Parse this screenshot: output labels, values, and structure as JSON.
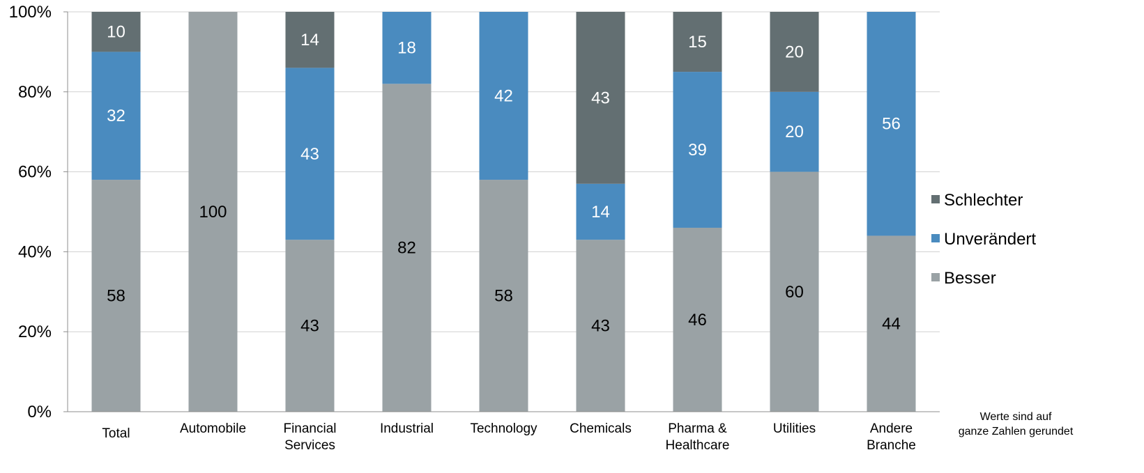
{
  "chart_data": {
    "type": "bar",
    "stacked": true,
    "percent_scale": true,
    "categories": [
      [
        "Total"
      ],
      [
        "Automobile"
      ],
      [
        "Financial",
        "Services"
      ],
      [
        "Industrial"
      ],
      [
        "Technology"
      ],
      [
        "Chemicals"
      ],
      [
        "Pharma &",
        "Healthcare"
      ],
      [
        "Utilities"
      ],
      [
        "Andere",
        "Branche"
      ]
    ],
    "series": [
      {
        "name": "Besser",
        "color": "#9aa2a5",
        "label_color": "#000000",
        "values": [
          58,
          100,
          43,
          82,
          58,
          43,
          46,
          60,
          44
        ]
      },
      {
        "name": "Unverändert",
        "color": "#4a8bbf",
        "label_color": "#ffffff",
        "values": [
          32,
          0,
          43,
          18,
          42,
          14,
          39,
          20,
          56
        ]
      },
      {
        "name": "Schlechter",
        "color": "#636f72",
        "label_color": "#ffffff",
        "values": [
          10,
          0,
          14,
          0,
          0,
          43,
          15,
          20,
          0
        ]
      }
    ],
    "ylim": [
      0,
      100
    ],
    "yticks": [
      "0%",
      "20%",
      "40%",
      "60%",
      "80%",
      "100%"
    ],
    "grid": true,
    "legend_position": "right",
    "legend_order": [
      "Schlechter",
      "Unverändert",
      "Besser"
    ],
    "note": [
      "Werte sind auf",
      "ganze Zahlen gerundet"
    ]
  }
}
